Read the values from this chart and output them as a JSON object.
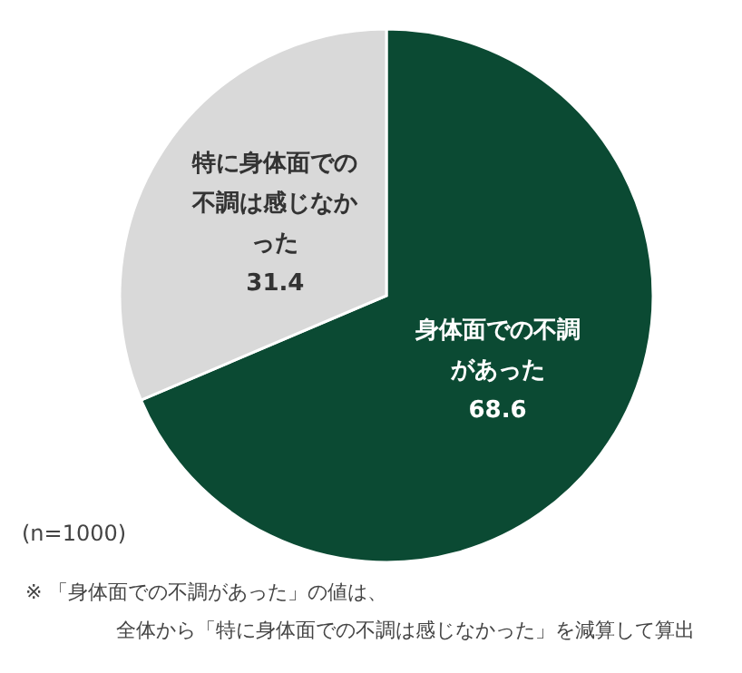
{
  "chart_data": {
    "type": "pie",
    "categories": [
      "身体面での不調があった",
      "特に身体面での不調は感じなかった"
    ],
    "values": [
      68.6,
      31.4
    ],
    "colors": [
      "#0b4a33",
      "#d9d9d9"
    ],
    "data_labels": true,
    "annotations": [
      "(n=1000)",
      "※ 「身体面での不調があった」の値は、",
      "全体から「特に身体面での不調は感じなかった」を減算して算出"
    ]
  }
}
